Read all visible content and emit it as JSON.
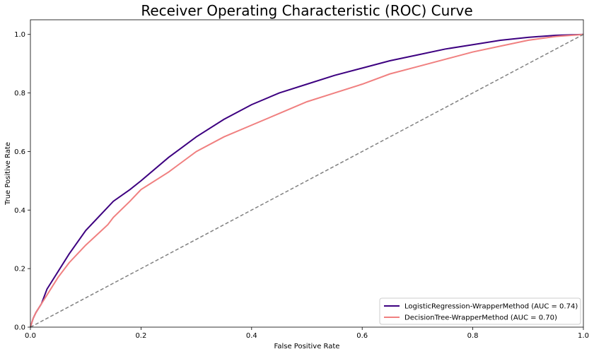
{
  "chart_data": {
    "type": "line",
    "title": "Receiver Operating Characteristic (ROC) Curve",
    "xlabel": "False Positive Rate",
    "ylabel": "True Positive Rate",
    "xlim": [
      0,
      1
    ],
    "ylim": [
      0,
      1.05
    ],
    "xticks": [
      "0.0",
      "0.2",
      "0.4",
      "0.6",
      "0.8",
      "1.0"
    ],
    "yticks": [
      "0.0",
      "0.2",
      "0.4",
      "0.6",
      "0.8",
      "1.0"
    ],
    "grid": false,
    "legend_position": "lower-right",
    "series": [
      {
        "name": "LogisticRegression-WrapperMethod (AUC = 0.74)",
        "color": "#3d0080",
        "x": [
          0,
          0.005,
          0.01,
          0.02,
          0.03,
          0.05,
          0.07,
          0.1,
          0.13,
          0.15,
          0.18,
          0.2,
          0.25,
          0.3,
          0.35,
          0.4,
          0.45,
          0.5,
          0.55,
          0.6,
          0.65,
          0.7,
          0.75,
          0.8,
          0.85,
          0.9,
          0.95,
          1.0
        ],
        "y": [
          0,
          0.03,
          0.05,
          0.08,
          0.13,
          0.19,
          0.25,
          0.33,
          0.39,
          0.43,
          0.47,
          0.5,
          0.58,
          0.65,
          0.71,
          0.76,
          0.8,
          0.83,
          0.86,
          0.885,
          0.91,
          0.93,
          0.95,
          0.965,
          0.98,
          0.99,
          0.997,
          1.0
        ]
      },
      {
        "name": "DecisionTree-WrapperMethod (AUC = 0.70)",
        "color": "#f08080",
        "x": [
          0,
          0.005,
          0.01,
          0.02,
          0.03,
          0.05,
          0.07,
          0.1,
          0.12,
          0.14,
          0.15,
          0.18,
          0.2,
          0.25,
          0.3,
          0.35,
          0.4,
          0.45,
          0.5,
          0.55,
          0.6,
          0.65,
          0.7,
          0.75,
          0.8,
          0.85,
          0.9,
          0.95,
          1.0
        ],
        "y": [
          0,
          0.03,
          0.05,
          0.08,
          0.11,
          0.17,
          0.22,
          0.28,
          0.315,
          0.35,
          0.375,
          0.43,
          0.47,
          0.53,
          0.6,
          0.65,
          0.69,
          0.73,
          0.77,
          0.8,
          0.83,
          0.865,
          0.89,
          0.915,
          0.94,
          0.96,
          0.98,
          0.993,
          1.0
        ]
      },
      {
        "name": "",
        "color": "#808080",
        "dashed": true,
        "x": [
          0,
          1
        ],
        "y": [
          0,
          1
        ]
      }
    ]
  }
}
